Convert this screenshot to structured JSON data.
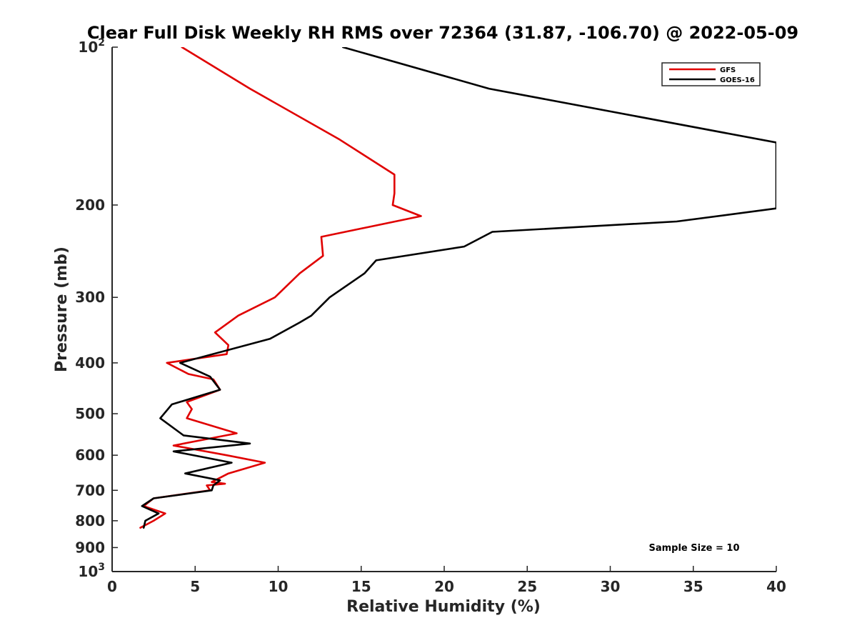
{
  "chart_data": {
    "type": "line",
    "title": "Clear Full Disk Weekly RH RMS over 72364 (31.87, -106.70) @ 2022-05-09",
    "xlabel": "Relative Humidity (%)",
    "ylabel": "Pressure (mb)",
    "xlim": [
      0,
      40
    ],
    "ylim": [
      100,
      1000
    ],
    "y_scale": "log",
    "y_reversed": true,
    "grid": false,
    "legend_position": "top-right",
    "x_ticks": [
      0,
      5,
      10,
      15,
      20,
      25,
      30,
      35,
      40
    ],
    "x_tick_labels": [
      "0",
      "5",
      "10",
      "15",
      "20",
      "25",
      "30",
      "35",
      "40"
    ],
    "y_ticks": [
      {
        "value": 100,
        "label": "10",
        "sup": "2"
      },
      {
        "value": 200,
        "label": "200",
        "sup": ""
      },
      {
        "value": 300,
        "label": "300",
        "sup": ""
      },
      {
        "value": 400,
        "label": "400",
        "sup": ""
      },
      {
        "value": 500,
        "label": "500",
        "sup": ""
      },
      {
        "value": 600,
        "label": "600",
        "sup": ""
      },
      {
        "value": 700,
        "label": "700",
        "sup": ""
      },
      {
        "value": 800,
        "label": "800",
        "sup": ""
      },
      {
        "value": 900,
        "label": "900",
        "sup": ""
      },
      {
        "value": 1000,
        "label": "10",
        "sup": "3"
      }
    ],
    "series": [
      {
        "name": "GFS",
        "color": "#e00000",
        "points": [
          [
            4.2,
            100
          ],
          [
            8.3,
            120
          ],
          [
            13.7,
            150
          ],
          [
            17.0,
            175
          ],
          [
            17.0,
            190
          ],
          [
            16.9,
            200
          ],
          [
            18.6,
            210
          ],
          [
            12.6,
            230
          ],
          [
            12.7,
            250
          ],
          [
            11.3,
            270
          ],
          [
            9.8,
            300
          ],
          [
            7.6,
            325
          ],
          [
            6.2,
            350
          ],
          [
            7.0,
            370
          ],
          [
            6.9,
            385
          ],
          [
            3.3,
            400
          ],
          [
            4.6,
            420
          ],
          [
            6.1,
            430
          ],
          [
            6.5,
            450
          ],
          [
            4.5,
            475
          ],
          [
            4.8,
            490
          ],
          [
            4.5,
            510
          ],
          [
            7.5,
            545
          ],
          [
            3.7,
            575
          ],
          [
            6.9,
            600
          ],
          [
            9.2,
            620
          ],
          [
            7.0,
            650
          ],
          [
            6.0,
            675
          ],
          [
            6.8,
            680
          ],
          [
            5.7,
            685
          ],
          [
            5.9,
            700
          ],
          [
            2.5,
            725
          ],
          [
            1.9,
            750
          ],
          [
            3.2,
            775
          ],
          [
            2.5,
            800
          ],
          [
            1.7,
            825
          ]
        ]
      },
      {
        "name": "GOES-16",
        "color": "#000000",
        "points": [
          [
            13.9,
            100
          ],
          [
            22.7,
            120
          ],
          [
            40.0,
            152
          ],
          [
            40.0,
            203
          ],
          [
            34.0,
            215
          ],
          [
            22.9,
            225
          ],
          [
            21.2,
            240
          ],
          [
            15.9,
            255
          ],
          [
            15.2,
            270
          ],
          [
            13.1,
            300
          ],
          [
            12.0,
            325
          ],
          [
            11.3,
            335
          ],
          [
            9.5,
            360
          ],
          [
            4.1,
            400
          ],
          [
            5.9,
            425
          ],
          [
            6.5,
            450
          ],
          [
            3.6,
            480
          ],
          [
            2.9,
            510
          ],
          [
            4.3,
            550
          ],
          [
            8.3,
            570
          ],
          [
            3.7,
            590
          ],
          [
            7.2,
            620
          ],
          [
            4.4,
            650
          ],
          [
            6.5,
            670
          ],
          [
            6.1,
            685
          ],
          [
            6.0,
            700
          ],
          [
            2.5,
            725
          ],
          [
            1.8,
            750
          ],
          [
            2.8,
            775
          ],
          [
            2.0,
            800
          ],
          [
            1.9,
            825
          ]
        ]
      }
    ],
    "annotations": [
      {
        "text": "Sample Size = 10",
        "position": "bottom-right"
      }
    ]
  }
}
